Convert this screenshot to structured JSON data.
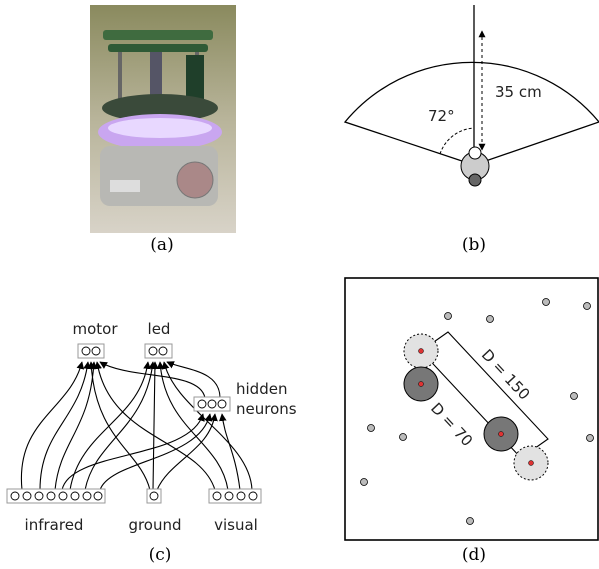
{
  "panels": {
    "a": {
      "caption": "(a)"
    },
    "b": {
      "caption": "(b)",
      "range": "35 cm",
      "angle": "72°"
    },
    "c": {
      "caption": "(c)",
      "motor": "motor",
      "led": "led",
      "hidden": [
        "hidden",
        "neurons"
      ],
      "infrared": "infrared",
      "ground": "ground",
      "visual": "visual"
    },
    "d": {
      "caption": "(d)",
      "long": "D = 150",
      "short": "D = 70"
    }
  }
}
